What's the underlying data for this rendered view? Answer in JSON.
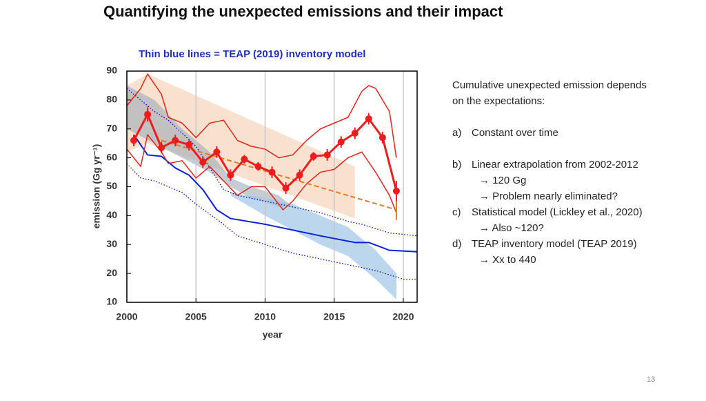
{
  "title": "Quantifying the unexpected emissions and their impact",
  "subtitle": "Thin blue lines = TEAP (2019) inventory model",
  "notes": [
    "Cumulative unexpected emission depends",
    "on the expectations:",
    "a)",
    "Constant over time",
    "b)",
    "Linear extrapolation from 2002-2012",
    "→ 120 Gg",
    "→ Problem nearly eliminated?",
    "c)",
    "Statistical model (Lickley et al., 2020)",
    "→ Also ~120?",
    "d)",
    "TEAP inventory model (TEAP 2019)",
    "→ Xx to 440"
  ],
  "page_number": "13",
  "chart_data": {
    "type": "line",
    "xlabel": "year",
    "ylabel": "emission (Gg yr⁻¹)",
    "xlim": [
      2000,
      2021
    ],
    "ylim": [
      10,
      90
    ],
    "xticks": [
      2000,
      2005,
      2010,
      2015,
      2020
    ],
    "yticks": [
      10,
      20,
      30,
      40,
      50,
      60,
      70,
      80,
      90
    ],
    "grid": "x",
    "bands": [
      {
        "color": "#f3c9a8",
        "opacity": 0.55,
        "x": [
          2000,
          2001.5,
          2016.5
        ],
        "upper": [
          85,
          89,
          57
        ],
        "lower": [
          62,
          65,
          39
        ]
      },
      {
        "color": "#9eaab8",
        "opacity": 0.6,
        "x": [
          2000,
          2002,
          2004,
          2006,
          2007.5,
          2009,
          2011,
          2012
        ],
        "upper": [
          85,
          80,
          70,
          62,
          53,
          50,
          47,
          43
        ],
        "lower": [
          70,
          65,
          60,
          55,
          50,
          46,
          43,
          43
        ]
      },
      {
        "color": "#9fc5e6",
        "opacity": 0.7,
        "x": [
          2007.5,
          2010,
          2012,
          2014,
          2016,
          2018,
          2019.5
        ],
        "upper": [
          48,
          46,
          44,
          40,
          36,
          28,
          20
        ],
        "lower": [
          47,
          40,
          35,
          30,
          26,
          18,
          11
        ]
      }
    ],
    "series": [
      {
        "color": "#0000cc",
        "style": "dotted",
        "width": 1.3,
        "x": [
          2000,
          2002,
          2003,
          2005,
          2007,
          2008,
          2010,
          2012,
          2014,
          2016,
          2017,
          2019,
          2021
        ],
        "values": [
          84,
          76,
          73,
          64,
          49,
          47,
          45,
          43,
          41,
          38,
          37,
          34,
          33
        ]
      },
      {
        "color": "#0000cc",
        "style": "dotted",
        "width": 1.3,
        "x": [
          2000,
          2001,
          2002,
          2004,
          2005,
          2007,
          2008,
          2010,
          2012,
          2014,
          2016,
          2018,
          2020,
          2021
        ],
        "values": [
          58,
          53,
          52,
          48,
          44,
          37,
          33,
          30,
          27,
          25,
          23,
          21,
          18,
          18
        ]
      },
      {
        "color": "#0a1fd6",
        "style": "solid",
        "width": 2,
        "x": [
          2000.5,
          2001.5,
          2002.5,
          2003.5,
          2004.5,
          2005.5,
          2006.5,
          2007.5,
          2010,
          2012,
          2014,
          2016.5,
          2017.5,
          2019,
          2021
        ],
        "values": [
          68,
          61,
          60.5,
          56.5,
          54,
          49,
          42,
          39,
          37,
          35,
          33,
          30.7,
          30.7,
          28,
          27.5
        ]
      },
      {
        "color": "#e8221a",
        "style": "solid",
        "width": 1.5,
        "x": [
          2000,
          2001,
          2001.5,
          2002.5,
          2003,
          2004,
          2005,
          2006,
          2007,
          2008,
          2009,
          2010,
          2011,
          2012,
          2013,
          2014,
          2015,
          2016,
          2017,
          2017.5,
          2018,
          2019,
          2019.5
        ],
        "values": [
          78,
          84,
          89,
          82,
          74,
          72,
          67,
          72,
          73,
          66,
          64,
          63,
          60,
          61,
          66,
          70,
          72,
          74,
          83,
          85,
          84,
          76,
          60
        ]
      },
      {
        "color": "#e8221a",
        "style": "solid",
        "width": 1.5,
        "x": [
          2000,
          2001,
          2001.5,
          2002.5,
          2003,
          2004,
          2005,
          2006,
          2007,
          2008,
          2009,
          2010,
          2011.3,
          2012,
          2013,
          2014,
          2015,
          2016,
          2017,
          2018,
          2019,
          2019.5
        ],
        "values": [
          63,
          57,
          68,
          62,
          58,
          59,
          53,
          57,
          52,
          47,
          50,
          50,
          42,
          45,
          51,
          55,
          56,
          60,
          62,
          55,
          47,
          41
        ]
      },
      {
        "color": "#e07b25",
        "style": "dashed",
        "width": 2,
        "x": [
          2002.5,
          2019.5
        ],
        "values": [
          66,
          42
        ],
        "errors": [
          null,
          3.5
        ]
      },
      {
        "color": "#ee1c1c",
        "style": "solid",
        "width": 3,
        "markers": true,
        "x": [
          2000.5,
          2001.5,
          2002.5,
          2003.5,
          2004.5,
          2005.5,
          2006.5,
          2007.5,
          2008.5,
          2009.5,
          2010.5,
          2011.5,
          2012.5,
          2013.5,
          2014.5,
          2015.5,
          2016.5,
          2017.5,
          2018.5,
          2019.5
        ],
        "values": [
          66,
          75,
          63.5,
          66,
          64.5,
          58.5,
          62,
          54,
          59.5,
          57,
          55,
          49.5,
          54,
          60.5,
          61,
          65.5,
          68.5,
          73.5,
          67,
          48.5
        ],
        "errors": [
          2,
          2.5,
          2,
          2,
          2,
          2,
          2,
          2,
          1.5,
          1.5,
          2,
          2,
          2,
          1.5,
          2,
          2,
          2,
          2,
          2,
          3.5
        ]
      }
    ]
  }
}
